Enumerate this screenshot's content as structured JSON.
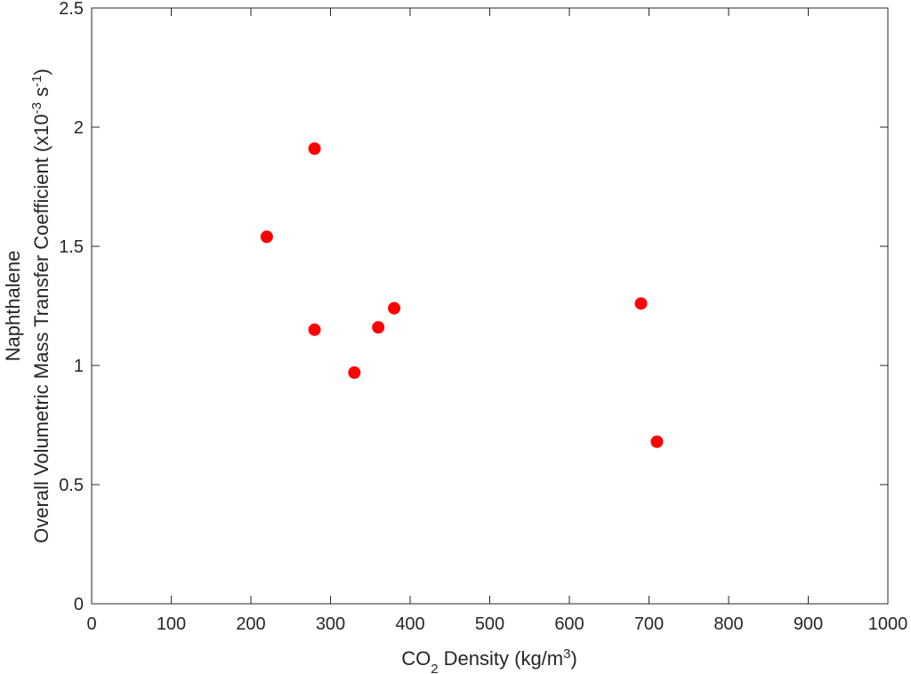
{
  "chart_data": {
    "type": "scatter",
    "xlabel": {
      "parts": [
        {
          "text": "CO",
          "shift": "normal"
        },
        {
          "text": "2",
          "shift": "sub"
        },
        {
          "text": " Density (kg/m",
          "shift": "normal"
        },
        {
          "text": "3",
          "shift": "super"
        },
        {
          "text": ")",
          "shift": "normal"
        }
      ]
    },
    "ylabel": {
      "line1": "Naphthalene",
      "line2_parts": [
        {
          "text": "Overall Volumetric Mass Transfer Coefficient (x10",
          "shift": "normal"
        },
        {
          "text": "-3",
          "shift": "super"
        },
        {
          "text": " s",
          "shift": "normal"
        },
        {
          "text": "-1",
          "shift": "super"
        },
        {
          "text": ")",
          "shift": "normal"
        }
      ]
    },
    "xlim": [
      0,
      1000
    ],
    "ylim": [
      0,
      2.5
    ],
    "xticks": [
      0,
      100,
      200,
      300,
      400,
      500,
      600,
      700,
      800,
      900,
      1000
    ],
    "yticks": [
      0,
      0.5,
      1,
      1.5,
      2,
      2.5
    ],
    "ytick_labels": [
      "0",
      "0.5",
      "1",
      "1.5",
      "2",
      "2.5"
    ],
    "grid": false,
    "marker_color": "#ff0000",
    "axis_color": "#262626",
    "points": [
      {
        "x": 220,
        "y": 1.54
      },
      {
        "x": 280,
        "y": 1.91
      },
      {
        "x": 280,
        "y": 1.15
      },
      {
        "x": 330,
        "y": 0.97
      },
      {
        "x": 360,
        "y": 1.16
      },
      {
        "x": 380,
        "y": 1.24
      },
      {
        "x": 690,
        "y": 1.26
      },
      {
        "x": 710,
        "y": 0.68
      }
    ]
  }
}
